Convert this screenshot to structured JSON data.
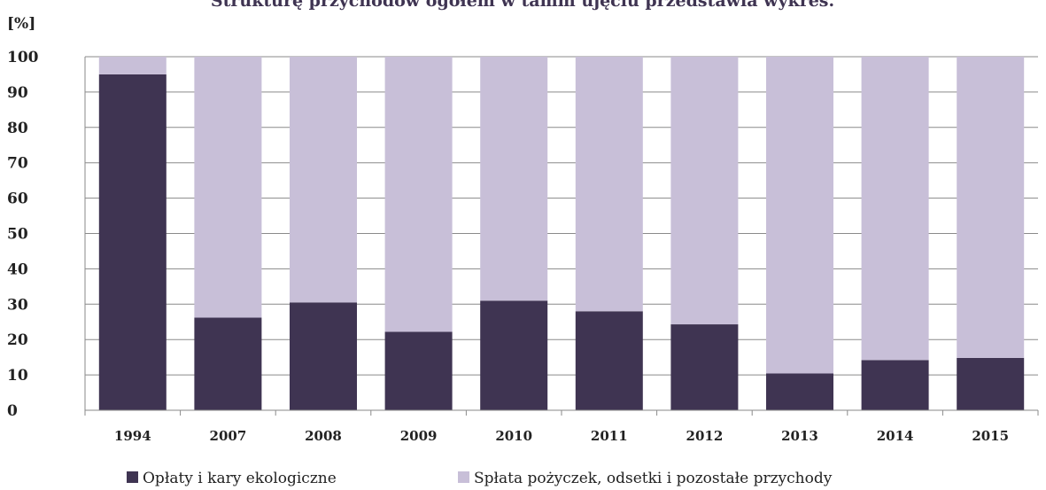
{
  "chart_data": {
    "type": "bar",
    "stacked": true,
    "title": "Strukturę przychodów ogółem w tamm ujęciu przedstawia wykres.",
    "ylabel": "[%]",
    "ylim": [
      0,
      100
    ],
    "yticks": [
      "0",
      "10",
      "20",
      "30",
      "40",
      "50",
      "60",
      "70",
      "80",
      "90",
      "100"
    ],
    "grid": true,
    "legend_position": "bottom",
    "categories": [
      "1994",
      "2007",
      "2008",
      "2009",
      "2010",
      "2011",
      "2012",
      "2013",
      "2014",
      "2015"
    ],
    "series": [
      {
        "name": "Opłaty i kary ekologiczne",
        "color": "#3f3452",
        "values": [
          95,
          26.2,
          30.5,
          22.2,
          31,
          28,
          24.3,
          10.4,
          14.2,
          14.8
        ]
      },
      {
        "name": "Spłata pożyczek, odsetki  i pozostałe przychody",
        "color": "#c8bfd8",
        "values": [
          5,
          73.8,
          69.5,
          77.8,
          69,
          72,
          75.7,
          89.6,
          85.8,
          85.2
        ]
      }
    ]
  }
}
